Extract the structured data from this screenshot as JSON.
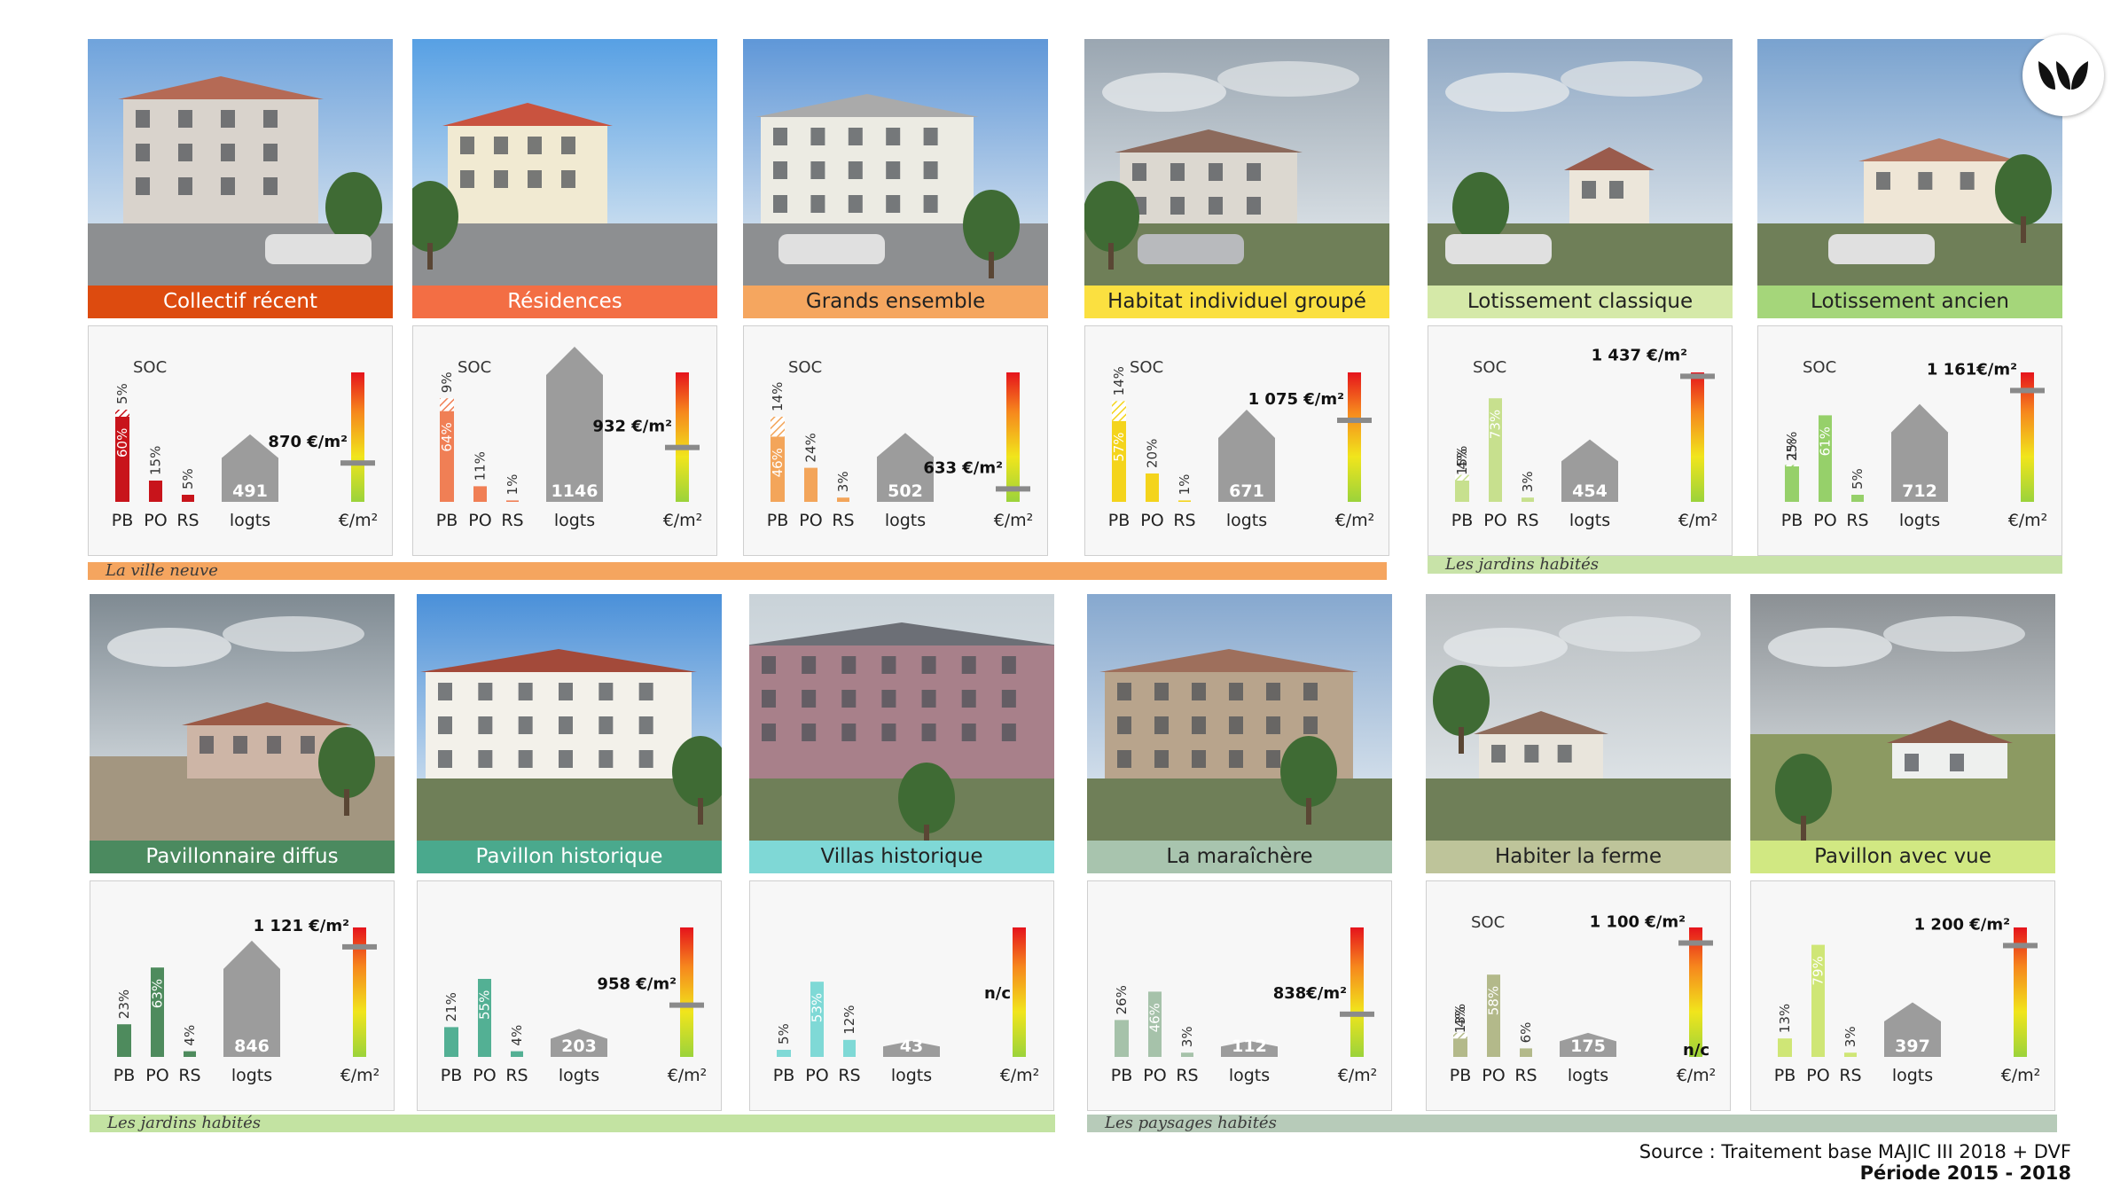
{
  "cards": [
    {
      "title": "Collectif récent",
      "color": "#dd4b0f",
      "text_color": "#ffffff",
      "bar_color": "#c8141b",
      "soc": "SOC",
      "bars": [
        {
          "label": "PB",
          "value": 60,
          "soc": 5
        },
        {
          "label": "PO",
          "value": 15,
          "soc": 0
        },
        {
          "label": "RS",
          "value": 5,
          "soc": 0
        }
      ],
      "housing": 491,
      "price": "870 €/m²",
      "price_level": 0.3,
      "categories": {
        "pb": "PB",
        "po": "PO",
        "rs": "RS",
        "logts": "logts",
        "eur": "€/m²"
      }
    },
    {
      "title": "Résidences",
      "color": "#f36e44",
      "text_color": "#ffffff",
      "bar_color": "#f07f55",
      "soc": "SOC",
      "bars": [
        {
          "label": "PB",
          "value": 64,
          "soc": 9
        },
        {
          "label": "PO",
          "value": 11,
          "soc": 0
        },
        {
          "label": "RS",
          "value": 1,
          "soc": 0
        }
      ],
      "housing": 1146,
      "price": "932 €/m²",
      "price_level": 0.42,
      "categories": {
        "pb": "PB",
        "po": "PO",
        "rs": "RS",
        "logts": "logts",
        "eur": "€/m²"
      }
    },
    {
      "title": "Grands ensemble",
      "color": "#f5a65f",
      "text_color": "#222222",
      "bar_color": "#f3a55a",
      "soc": "SOC",
      "bars": [
        {
          "label": "PB",
          "value": 46,
          "soc": 14
        },
        {
          "label": "PO",
          "value": 24,
          "soc": 0
        },
        {
          "label": "RS",
          "value": 3,
          "soc": 0
        }
      ],
      "housing": 502,
      "price": "633 €/m²",
      "price_level": 0.1,
      "categories": {
        "pb": "PB",
        "po": "PO",
        "rs": "RS",
        "logts": "logts",
        "eur": "€/m²"
      }
    },
    {
      "title": "Habitat individuel groupé",
      "color": "#fbe040",
      "text_color": "#222222",
      "bar_color": "#f4d41c",
      "soc": "SOC",
      "bars": [
        {
          "label": "PB",
          "value": 57,
          "soc": 14
        },
        {
          "label": "PO",
          "value": 20,
          "soc": 0
        },
        {
          "label": "RS",
          "value": 1,
          "soc": 0
        }
      ],
      "housing": 671,
      "price": "1 075 €/m²",
      "price_level": 0.63,
      "categories": {
        "pb": "PB",
        "po": "PO",
        "rs": "RS",
        "logts": "logts",
        "eur": "€/m²"
      }
    },
    {
      "title": "Lotissement classique",
      "color": "#d5e9a8",
      "text_color": "#222222",
      "bar_color": "#c7e08e",
      "soc": "SOC",
      "bars": [
        {
          "label": "PB",
          "value": 15,
          "soc": 4
        },
        {
          "label": "PO",
          "value": 73,
          "soc": 0
        },
        {
          "label": "RS",
          "value": 3,
          "soc": 0
        }
      ],
      "housing": 454,
      "price": "1 437 €/m²",
      "price_level": 0.97,
      "categories": {
        "pb": "PB",
        "po": "PO",
        "rs": "RS",
        "logts": "logts",
        "eur": "€/m²"
      }
    },
    {
      "title": "Lotissement ancien",
      "color": "#a5d67a",
      "text_color": "#222222",
      "bar_color": "#96d06a",
      "soc": "SOC",
      "bars": [
        {
          "label": "PB",
          "value": 25,
          "soc": 1
        },
        {
          "label": "PO",
          "value": 61,
          "soc": 0
        },
        {
          "label": "RS",
          "value": 5,
          "soc": 0
        }
      ],
      "housing": 712,
      "price": "1 161€/m²",
      "price_level": 0.86,
      "categories": {
        "pb": "PB",
        "po": "PO",
        "rs": "RS",
        "logts": "logts",
        "eur": "€/m²"
      }
    },
    {
      "title": "Pavillonnaire diffus",
      "color": "#4b8a5f",
      "text_color": "#ffffff",
      "bar_color": "#4e8b5d",
      "soc": "",
      "bars": [
        {
          "label": "PB",
          "value": 23,
          "soc": 0
        },
        {
          "label": "PO",
          "value": 63,
          "soc": 0
        },
        {
          "label": "RS",
          "value": 4,
          "soc": 0
        }
      ],
      "housing": 846,
      "price": "1 121 €/m²",
      "price_level": 0.85,
      "categories": {
        "pb": "PB",
        "po": "PO",
        "rs": "RS",
        "logts": "logts",
        "eur": "€/m²"
      }
    },
    {
      "title": "Pavillon historique",
      "color": "#4aa98d",
      "text_color": "#ffffff",
      "bar_color": "#53b094",
      "soc": "",
      "bars": [
        {
          "label": "PB",
          "value": 21,
          "soc": 0
        },
        {
          "label": "PO",
          "value": 55,
          "soc": 0
        },
        {
          "label": "RS",
          "value": 4,
          "soc": 0
        }
      ],
      "housing": 203,
      "price": "958 €/m²",
      "price_level": 0.4,
      "categories": {
        "pb": "PB",
        "po": "PO",
        "rs": "RS",
        "logts": "logts",
        "eur": "€/m²"
      }
    },
    {
      "title": "Villas historique",
      "color": "#7fd8d6",
      "text_color": "#222222",
      "bar_color": "#7fd9d6",
      "soc": "",
      "bars": [
        {
          "label": "PB",
          "value": 5,
          "soc": 0
        },
        {
          "label": "PO",
          "value": 53,
          "soc": 0
        },
        {
          "label": "RS",
          "value": 12,
          "soc": 0
        }
      ],
      "housing": 43,
      "price": "n/c",
      "price_level": null,
      "categories": {
        "pb": "PB",
        "po": "PO",
        "rs": "RS",
        "logts": "logts",
        "eur": "€/m²"
      }
    },
    {
      "title": "La maraîchère",
      "color": "#a8c4ae",
      "text_color": "#222222",
      "bar_color": "#a6c2aa",
      "soc": "",
      "bars": [
        {
          "label": "PB",
          "value": 26,
          "soc": 0
        },
        {
          "label": "PO",
          "value": 46,
          "soc": 0
        },
        {
          "label": "RS",
          "value": 3,
          "soc": 0
        }
      ],
      "housing": 112,
      "price": "838€/m²",
      "price_level": 0.33,
      "categories": {
        "pb": "PB",
        "po": "PO",
        "rs": "RS",
        "logts": "logts",
        "eur": "€/m²"
      }
    },
    {
      "title": "Habiter la ferme",
      "color": "#bec49a",
      "text_color": "#222222",
      "bar_color": "#b3b98a",
      "soc": "SOC",
      "bars": [
        {
          "label": "PB",
          "value": 13,
          "soc": 4
        },
        {
          "label": "PO",
          "value": 58,
          "soc": 0
        },
        {
          "label": "RS",
          "value": 6,
          "soc": 0
        }
      ],
      "housing": 175,
      "price": "1 100 €/m²",
      "price_level": 0.88,
      "price_note": "n/c",
      "categories": {
        "pb": "PB",
        "po": "PO",
        "rs": "RS",
        "logts": "logts",
        "eur": "€/m²"
      }
    },
    {
      "title": "Pavillon avec vue",
      "color": "#d1e882",
      "text_color": "#222222",
      "bar_color": "#cfe676",
      "soc": "",
      "bars": [
        {
          "label": "PB",
          "value": 13,
          "soc": 0
        },
        {
          "label": "PO",
          "value": 79,
          "soc": 0
        },
        {
          "label": "RS",
          "value": 3,
          "soc": 0
        }
      ],
      "housing": 397,
      "price": "1 200 €/m²",
      "price_level": 0.86,
      "categories": {
        "pb": "PB",
        "po": "PO",
        "rs": "RS",
        "logts": "logts",
        "eur": "€/m²"
      }
    }
  ],
  "bands": [
    {
      "label": "La ville neuve",
      "color": "#f5a55f"
    },
    {
      "label": "Les jardins habités",
      "color": "#c8e3a8"
    },
    {
      "label": "Les jardins habités",
      "color": "#c3e3a2"
    },
    {
      "label": "Les paysages habités",
      "color": "#b7cbb9"
    }
  ],
  "source": {
    "line1": "Source : Traitement base MAJIC III 2018 + DVF",
    "line2": "Période 2015 - 2018"
  },
  "chart_data": {
    "type": "bar",
    "categories": [
      "PB",
      "PO",
      "RS"
    ],
    "unit": "%",
    "series": [
      {
        "name": "Collectif récent",
        "values": [
          60,
          15,
          5
        ],
        "soc_pb": 5,
        "logts": 491,
        "price_eur_m2": 870
      },
      {
        "name": "Résidences",
        "values": [
          64,
          11,
          1
        ],
        "soc_pb": 9,
        "logts": 1146,
        "price_eur_m2": 932
      },
      {
        "name": "Grands ensemble",
        "values": [
          46,
          24,
          3
        ],
        "soc_pb": 14,
        "logts": 502,
        "price_eur_m2": 633
      },
      {
        "name": "Habitat individuel groupé",
        "values": [
          57,
          20,
          1
        ],
        "soc_pb": 14,
        "logts": 671,
        "price_eur_m2": 1075
      },
      {
        "name": "Lotissement classique",
        "values": [
          15,
          73,
          3
        ],
        "soc_pb": 4,
        "logts": 454,
        "price_eur_m2": 1437
      },
      {
        "name": "Lotissement ancien",
        "values": [
          25,
          61,
          5
        ],
        "soc_pb": 1,
        "logts": 712,
        "price_eur_m2": 1161
      },
      {
        "name": "Pavillonnaire diffus",
        "values": [
          23,
          63,
          4
        ],
        "logts": 846,
        "price_eur_m2": 1121
      },
      {
        "name": "Pavillon historique",
        "values": [
          21,
          55,
          4
        ],
        "logts": 203,
        "price_eur_m2": 958
      },
      {
        "name": "Villas historique",
        "values": [
          5,
          53,
          12
        ],
        "logts": 43,
        "price_eur_m2": null
      },
      {
        "name": "La maraîchère",
        "values": [
          26,
          46,
          3
        ],
        "logts": 112,
        "price_eur_m2": 838
      },
      {
        "name": "Habiter la ferme",
        "values": [
          13,
          58,
          6
        ],
        "soc_pb": 4,
        "logts": 175,
        "price_eur_m2": 1100
      },
      {
        "name": "Pavillon avec vue",
        "values": [
          13,
          79,
          3
        ],
        "logts": 397,
        "price_eur_m2": 1200
      }
    ]
  }
}
